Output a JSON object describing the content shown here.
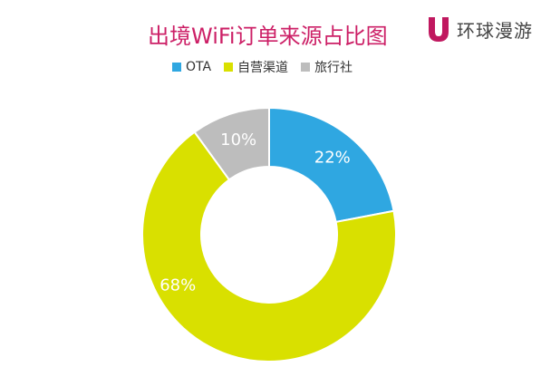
{
  "header": {
    "title": "出境WiFi订单来源占比图",
    "brand_name": "环球漫游"
  },
  "colors": {
    "title": "#cc1f66",
    "brand_logo": "#c0185f"
  },
  "chart_data": {
    "type": "pie",
    "title": "出境WiFi订单来源占比图",
    "donut": true,
    "legend_position": "top",
    "slices": [
      {
        "label": "OTA",
        "value": 22,
        "display": "22%",
        "color": "#2fa7e1"
      },
      {
        "label": "自营渠道",
        "value": 68,
        "display": "68%",
        "color": "#d9e000"
      },
      {
        "label": "旅行社",
        "value": 10,
        "display": "10%",
        "color": "#bdbdbd"
      }
    ]
  }
}
